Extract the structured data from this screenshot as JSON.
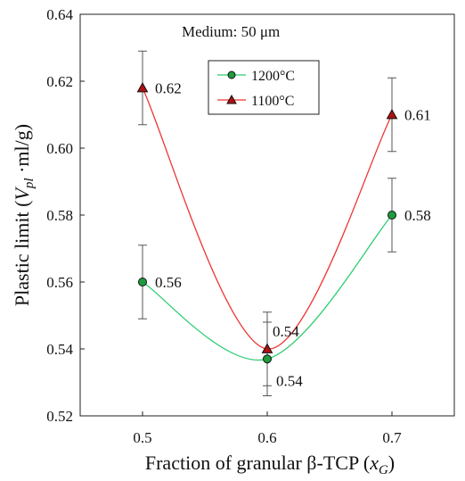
{
  "chart_data": {
    "type": "line",
    "title": "",
    "annotation": "Medium: 50 μm",
    "xlabel": "Fraction of granular β-TCP (xG)",
    "xlabel_parts": {
      "main": "Fraction of granular β-TCP (",
      "var": "x",
      "sub": "G",
      "end": ")"
    },
    "ylabel": "Plastic limit (Vpl ·ml/g)",
    "ylabel_parts": {
      "main": "Plastic limit (",
      "var": "V",
      "sub": "pl",
      "end": " ·ml/g)"
    },
    "x": [
      0.5,
      0.6,
      0.7
    ],
    "x_ticks": [
      "0.5",
      "0.6",
      "0.7"
    ],
    "xlim": [
      0.45,
      0.75
    ],
    "ylim": [
      0.52,
      0.64
    ],
    "y_ticks": [
      "0.52",
      "0.54",
      "0.56",
      "0.58",
      "0.60",
      "0.62",
      "0.64"
    ],
    "grid": false,
    "legend_position": "top-center",
    "series": [
      {
        "name": "1200°C",
        "values": [
          0.56,
          0.537,
          0.58
        ],
        "errors": [
          0.011,
          0.011,
          0.011
        ],
        "labels": [
          "0.56",
          "0.54",
          "0.58"
        ],
        "line_color": "#2ecc71",
        "marker_color": "#1e9b3e",
        "marker": "circle"
      },
      {
        "name": "1100°C",
        "values": [
          0.618,
          0.54,
          0.61
        ],
        "errors": [
          0.011,
          0.011,
          0.011
        ],
        "labels": [
          "0.62",
          "0.54",
          "0.61"
        ],
        "line_color": "#ee3333",
        "marker_color": "#b01010",
        "marker": "triangle"
      }
    ]
  }
}
